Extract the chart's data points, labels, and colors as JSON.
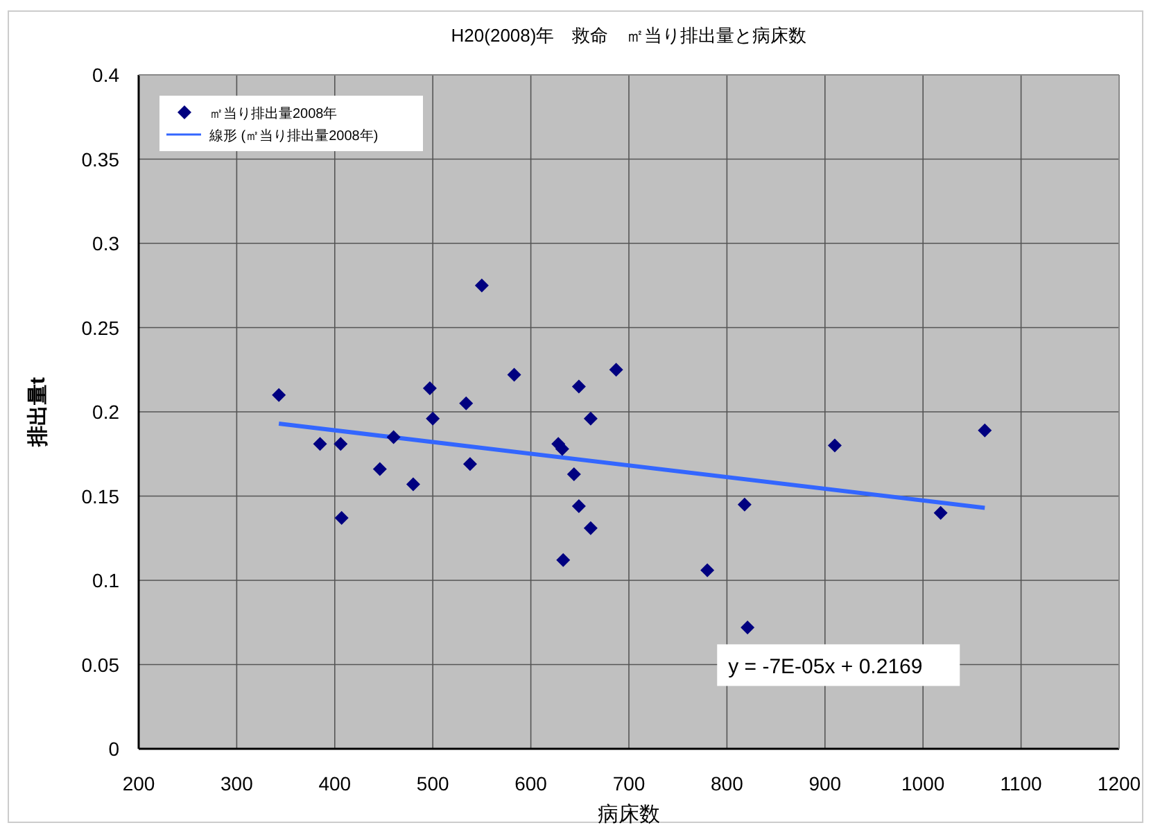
{
  "chart_data": {
    "type": "scatter",
    "title": "H20(2008)年　救命　㎡当り排出量と病床数",
    "xlabel": "病床数",
    "ylabel": "排出量t",
    "annotations": [
      "y = -7E-05x + 0.2169"
    ],
    "series": [
      {
        "name": "㎡当り排出量2008年",
        "marker": "diamond",
        "color": "#000080",
        "x": [
          343,
          385,
          406,
          407,
          446,
          460,
          480,
          497,
          500,
          550,
          534,
          538,
          583,
          628,
          632,
          644,
          649,
          661,
          649,
          661,
          633,
          687,
          780,
          818,
          821,
          910,
          1018,
          1063
        ],
        "values": [
          0.21,
          0.181,
          0.181,
          0.137,
          0.166,
          0.185,
          0.157,
          0.214,
          0.196,
          0.275,
          0.205,
          0.169,
          0.222,
          0.181,
          0.178,
          0.163,
          0.215,
          0.196,
          0.144,
          0.131,
          0.112,
          0.225,
          0.106,
          0.145,
          0.072,
          0.18,
          0.14,
          0.189
        ]
      },
      {
        "name": "線形 (㎡当り排出量2008年)",
        "type": "line",
        "color": "#3366ff",
        "x": [
          343,
          1063
        ],
        "values": [
          0.193,
          0.143
        ]
      }
    ],
    "xlim": [
      200,
      1200
    ],
    "xticks": [
      200,
      300,
      400,
      500,
      600,
      700,
      800,
      900,
      1000,
      1100,
      1200
    ],
    "ylim": [
      0,
      0.4
    ],
    "yticks": [
      0,
      0.05,
      0.1,
      0.15,
      0.2,
      0.25,
      0.3,
      0.35,
      0.4
    ],
    "grid": true,
    "legend": "top left"
  }
}
